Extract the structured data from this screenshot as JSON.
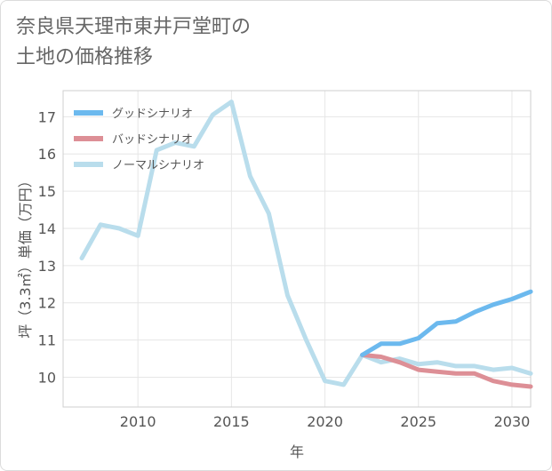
{
  "title_lines": [
    "奈良県天理市東井戸堂町の",
    "土地の価格推移"
  ],
  "chart_data": {
    "type": "line",
    "title": "奈良県天理市東井戸堂町の土地の価格推移",
    "xlabel": "年",
    "ylabel": "坪（3.3㎡）単価（万円）",
    "xlim": [
      2006,
      2031
    ],
    "ylim": [
      9.2,
      17.7
    ],
    "xticks": [
      2010,
      2015,
      2020,
      2025,
      2030
    ],
    "yticks": [
      10,
      11,
      12,
      13,
      14,
      15,
      16,
      17
    ],
    "grid": true,
    "legend_position": "top-left",
    "series": [
      {
        "name": "グッドシナリオ",
        "color": "#6cb9ee",
        "x": [
          2022,
          2023,
          2024,
          2025,
          2026,
          2027,
          2028,
          2029,
          2030,
          2031
        ],
        "values": [
          10.6,
          10.9,
          10.9,
          11.05,
          11.45,
          11.5,
          11.75,
          11.95,
          12.1,
          12.3
        ]
      },
      {
        "name": "バッドシナリオ",
        "color": "#dd8f96",
        "x": [
          2022,
          2023,
          2024,
          2025,
          2026,
          2027,
          2028,
          2029,
          2030,
          2031
        ],
        "values": [
          10.6,
          10.55,
          10.4,
          10.2,
          10.15,
          10.1,
          10.1,
          9.9,
          9.8,
          9.75
        ]
      },
      {
        "name": "ノーマルシナリオ",
        "color": "#b9ddec",
        "x": [
          2007,
          2008,
          2009,
          2010,
          2011,
          2012,
          2013,
          2014,
          2015,
          2016,
          2017,
          2018,
          2019,
          2020,
          2021,
          2022,
          2023,
          2024,
          2025,
          2026,
          2027,
          2028,
          2029,
          2030,
          2031
        ],
        "values": [
          13.2,
          14.1,
          14.0,
          13.8,
          16.1,
          16.3,
          16.2,
          17.05,
          17.4,
          15.4,
          14.4,
          12.2,
          11.0,
          9.9,
          9.8,
          10.6,
          10.4,
          10.5,
          10.35,
          10.4,
          10.3,
          10.3,
          10.2,
          10.25,
          10.1
        ]
      }
    ]
  }
}
